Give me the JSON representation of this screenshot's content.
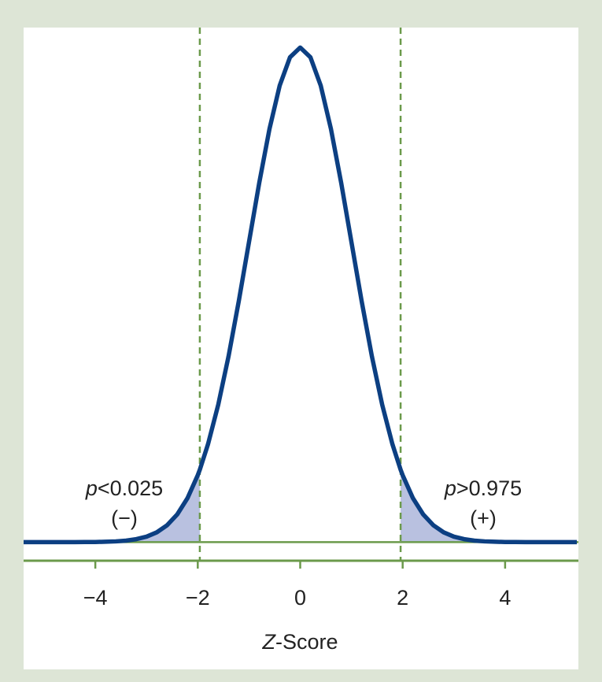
{
  "chart_data": {
    "type": "line",
    "x": [
      -5.4,
      -5.2,
      -5.0,
      -4.8,
      -4.6,
      -4.4,
      -4.2,
      -4.0,
      -3.8,
      -3.6,
      -3.4,
      -3.2,
      -3.0,
      -2.8,
      -2.6,
      -2.4,
      -2.2,
      -2.0,
      -1.96,
      -1.8,
      -1.6,
      -1.4,
      -1.2,
      -1.0,
      -0.8,
      -0.6,
      -0.4,
      -0.2,
      0,
      0.2,
      0.4,
      0.6,
      0.8,
      1.0,
      1.2,
      1.4,
      1.6,
      1.8,
      1.96,
      2.0,
      2.2,
      2.4,
      2.6,
      2.8,
      3.0,
      3.2,
      3.4,
      3.6,
      3.8,
      4.0,
      4.2,
      4.4,
      4.6,
      4.8,
      5.0,
      5.2,
      5.4
    ],
    "values": [
      0,
      0,
      0,
      0,
      0,
      0,
      0.0001,
      0.0001,
      0.0003,
      0.0006,
      0.0012,
      0.0024,
      0.0044,
      0.0079,
      0.0136,
      0.0224,
      0.0355,
      0.054,
      0.0584,
      0.079,
      0.1109,
      0.1497,
      0.1942,
      0.242,
      0.2897,
      0.3332,
      0.3683,
      0.391,
      0.3989,
      0.391,
      0.3683,
      0.3332,
      0.2897,
      0.242,
      0.1942,
      0.1497,
      0.1109,
      0.079,
      0.0584,
      0.054,
      0.0355,
      0.0224,
      0.0136,
      0.0079,
      0.0044,
      0.0024,
      0.0012,
      0.0006,
      0.0003,
      0.0001,
      0.0001,
      0,
      0,
      0,
      0,
      0,
      0
    ],
    "color": "#0c3f82",
    "critical": [
      -1.96,
      1.96
    ],
    "shade_color": "#b9c1e0",
    "line_color": "#6b9a4b",
    "xlim": [
      -5.4,
      5.4
    ],
    "ylim": [
      -0.015,
      0.415
    ],
    "xticks": [
      {
        "value": -4,
        "label": "−4"
      },
      {
        "value": -2,
        "label": "−2"
      },
      0,
      2,
      4
    ],
    "xlabel": {
      "italic": "Z",
      "text": "-Score"
    },
    "annotations": [
      {
        "italic": "p",
        "text": "<0.025",
        "sign": "(−)"
      },
      {
        "italic": "p",
        "text": ">0.975",
        "sign": "(+)"
      }
    ]
  }
}
